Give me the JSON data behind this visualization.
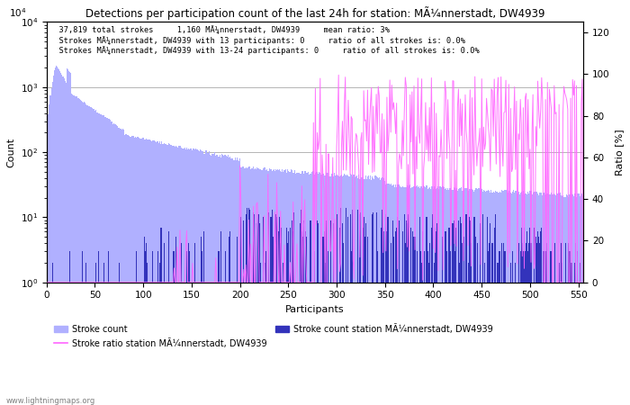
{
  "title": "Detections per participation count of the last 24h for station: MÃ¼nnerstadt, DW4939",
  "annotation_lines": [
    "  37,819 total strokes     1,160 MÃ¼nnerstadt, DW4939     mean ratio: 3%",
    "  Strokes MÃ¼nnerstadt, DW4939 with 13 participants: 0     ratio of all strokes is: 0.0%",
    "  Strokes MÃ¼nnerstadt, DW4939 with 13-24 participants: 0     ratio of all strokes is: 0.0%"
  ],
  "xlabel": "Participants",
  "ylabel": "Count",
  "ylabel_right": "Ratio [%]",
  "xlim": [
    0,
    555
  ],
  "ylim_log": [
    1.0,
    10000.0
  ],
  "ylim_right": [
    0,
    125
  ],
  "bar_color_global": "#b0b0ff",
  "bar_color_station": "#3333bb",
  "line_color_ratio": "#ff66ff",
  "watermark": "www.lightningmaps.org",
  "legend_labels": [
    "Stroke count",
    "Stroke count station MÃ¼nnerstadt, DW4939",
    "Stroke ratio station MÃ¼nnerstadt, DW4939"
  ],
  "yticks_left": [
    1,
    10,
    100,
    1000,
    10000
  ],
  "yticks_right": [
    0,
    20,
    40,
    60,
    80,
    100,
    120
  ],
  "xticks": [
    0,
    50,
    100,
    150,
    200,
    250,
    300,
    350,
    400,
    450,
    500,
    550
  ]
}
